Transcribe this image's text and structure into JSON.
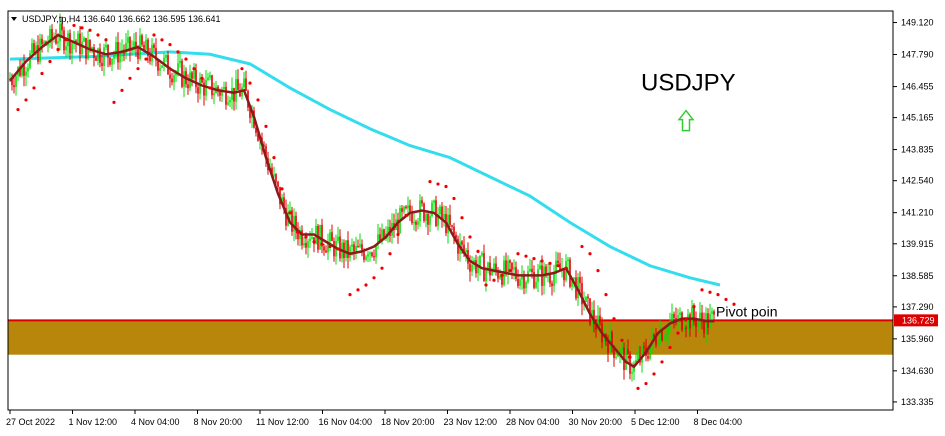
{
  "header": {
    "text": "USDJPY,tp,H4  136.640 136.662 136.595 136.641"
  },
  "symbol_label": "USDJPY",
  "pivot_label": "Pivot poin",
  "current_price_tag": "136.729",
  "colors": {
    "bull_candle": "#00dd00",
    "bear_candle": "#dd0000",
    "fast_ma": "#8b1a1a",
    "slow_ma": "#33ddee",
    "parabolic_sar": "#ee0000",
    "pivot_zone": "#b8860b",
    "pivot_line": "#dd0000",
    "up_arrow": "#33cc33",
    "price_tag_bg": "#dd0000"
  },
  "chart_data": {
    "type": "candlestick",
    "y_ticks": [
      "149.120",
      "147.790",
      "146.455",
      "145.165",
      "143.835",
      "142.540",
      "141.210",
      "139.915",
      "138.585",
      "137.290",
      "135.960",
      "134.630",
      "133.335"
    ],
    "x_ticks": [
      "27 Oct 2022",
      "1 Nov 12:00",
      "4 Nov 04:00",
      "8 Nov 20:00",
      "11 Nov 12:00",
      "16 Nov 04:00",
      "18 Nov 20:00",
      "23 Nov 12:00",
      "28 Nov 04:00",
      "30 Nov 20:00",
      "5 Dec 12:00",
      "8 Dec 04:00"
    ],
    "ylim": [
      133.0,
      149.6
    ],
    "pivot_zone": {
      "from": 135.3,
      "to": 136.75
    },
    "pivot_line": 136.73,
    "fast_ma": [
      [
        0,
        146.7
      ],
      [
        8,
        147.5
      ],
      [
        16,
        148.1
      ],
      [
        24,
        148.6
      ],
      [
        32,
        148.3
      ],
      [
        40,
        148.0
      ],
      [
        48,
        147.8
      ],
      [
        56,
        147.9
      ],
      [
        64,
        148.1
      ],
      [
        72,
        147.7
      ],
      [
        80,
        147.2
      ],
      [
        88,
        146.8
      ],
      [
        96,
        146.5
      ],
      [
        104,
        146.3
      ],
      [
        112,
        146.2
      ],
      [
        117,
        146.3
      ],
      [
        122,
        145.2
      ],
      [
        128,
        143.5
      ],
      [
        134,
        142.0
      ],
      [
        140,
        140.8
      ],
      [
        146,
        140.3
      ],
      [
        152,
        140.3
      ],
      [
        158,
        140.0
      ],
      [
        164,
        139.7
      ],
      [
        170,
        139.5
      ],
      [
        176,
        139.6
      ],
      [
        182,
        139.8
      ],
      [
        188,
        140.2
      ],
      [
        194,
        140.8
      ],
      [
        200,
        141.2
      ],
      [
        206,
        141.3
      ],
      [
        212,
        141.2
      ],
      [
        218,
        140.8
      ],
      [
        224,
        139.9
      ],
      [
        230,
        139.2
      ],
      [
        236,
        138.9
      ],
      [
        242,
        138.8
      ],
      [
        248,
        138.7
      ],
      [
        254,
        138.6
      ],
      [
        260,
        138.6
      ],
      [
        266,
        138.6
      ],
      [
        272,
        138.7
      ],
      [
        278,
        138.9
      ],
      [
        284,
        138.0
      ],
      [
        290,
        137.0
      ],
      [
        296,
        136.2
      ],
      [
        302,
        135.6
      ],
      [
        308,
        135.0
      ],
      [
        312,
        134.8
      ],
      [
        318,
        135.4
      ],
      [
        324,
        136.2
      ],
      [
        330,
        136.6
      ],
      [
        336,
        136.8
      ],
      [
        342,
        136.8
      ],
      [
        348,
        136.7
      ],
      [
        352,
        136.7
      ]
    ],
    "slow_ma": [
      [
        0,
        147.6
      ],
      [
        40,
        147.7
      ],
      [
        80,
        147.9
      ],
      [
        100,
        147.8
      ],
      [
        120,
        147.4
      ],
      [
        140,
        146.4
      ],
      [
        160,
        145.5
      ],
      [
        180,
        144.7
      ],
      [
        200,
        144.0
      ],
      [
        220,
        143.5
      ],
      [
        240,
        142.7
      ],
      [
        260,
        141.9
      ],
      [
        280,
        140.8
      ],
      [
        300,
        139.8
      ],
      [
        320,
        139.0
      ],
      [
        340,
        138.5
      ],
      [
        355,
        138.2
      ]
    ],
    "sar": [
      [
        4,
        145.5
      ],
      [
        8,
        145.9
      ],
      [
        12,
        146.4
      ],
      [
        16,
        147.0
      ],
      [
        20,
        147.5
      ],
      [
        24,
        148.0
      ],
      [
        28,
        148.4
      ],
      [
        32,
        149.0
      ],
      [
        36,
        148.9
      ],
      [
        40,
        148.8
      ],
      [
        44,
        148.6
      ],
      [
        48,
        148.4
      ],
      [
        52,
        145.8
      ],
      [
        56,
        146.3
      ],
      [
        60,
        146.8
      ],
      [
        64,
        147.2
      ],
      [
        68,
        147.6
      ],
      [
        72,
        148.6
      ],
      [
        76,
        148.4
      ],
      [
        80,
        148.2
      ],
      [
        84,
        147.9
      ],
      [
        88,
        147.6
      ],
      [
        92,
        147.2
      ],
      [
        96,
        146.8
      ],
      [
        100,
        146.4
      ],
      [
        116,
        147.2
      ],
      [
        120,
        146.6
      ],
      [
        124,
        145.9
      ],
      [
        128,
        144.8
      ],
      [
        132,
        143.5
      ],
      [
        136,
        142.2
      ],
      [
        140,
        141.2
      ],
      [
        144,
        140.4
      ],
      [
        148,
        140.2
      ],
      [
        152,
        140.0
      ],
      [
        156,
        139.9
      ],
      [
        160,
        139.8
      ],
      [
        164,
        139.7
      ],
      [
        170,
        137.8
      ],
      [
        174,
        138.0
      ],
      [
        178,
        138.2
      ],
      [
        182,
        138.5
      ],
      [
        186,
        138.9
      ],
      [
        190,
        139.5
      ],
      [
        194,
        140.3
      ],
      [
        198,
        141.1
      ],
      [
        210,
        142.5
      ],
      [
        214,
        142.4
      ],
      [
        218,
        142.3
      ],
      [
        222,
        141.8
      ],
      [
        226,
        141.0
      ],
      [
        230,
        140.2
      ],
      [
        234,
        139.6
      ],
      [
        238,
        138.2
      ],
      [
        242,
        138.4
      ],
      [
        246,
        138.6
      ],
      [
        250,
        138.8
      ],
      [
        254,
        139.5
      ],
      [
        258,
        139.4
      ],
      [
        262,
        139.3
      ],
      [
        266,
        139.2
      ],
      [
        270,
        139.1
      ],
      [
        274,
        139.0
      ],
      [
        278,
        138.9
      ],
      [
        286,
        139.8
      ],
      [
        290,
        139.5
      ],
      [
        294,
        138.8
      ],
      [
        298,
        137.8
      ],
      [
        302,
        136.8
      ],
      [
        306,
        135.9
      ],
      [
        310,
        135.2
      ],
      [
        314,
        133.9
      ],
      [
        318,
        134.1
      ],
      [
        322,
        134.5
      ],
      [
        326,
        135.0
      ],
      [
        330,
        135.6
      ],
      [
        334,
        136.2
      ],
      [
        338,
        136.8
      ],
      [
        342,
        137.3
      ],
      [
        346,
        138.0
      ],
      [
        350,
        137.9
      ],
      [
        354,
        137.8
      ],
      [
        358,
        137.6
      ],
      [
        362,
        137.4
      ]
    ],
    "pivot_text_price": 137.05,
    "symbol_text_price": 146.3,
    "arrow_price": 145.0
  }
}
